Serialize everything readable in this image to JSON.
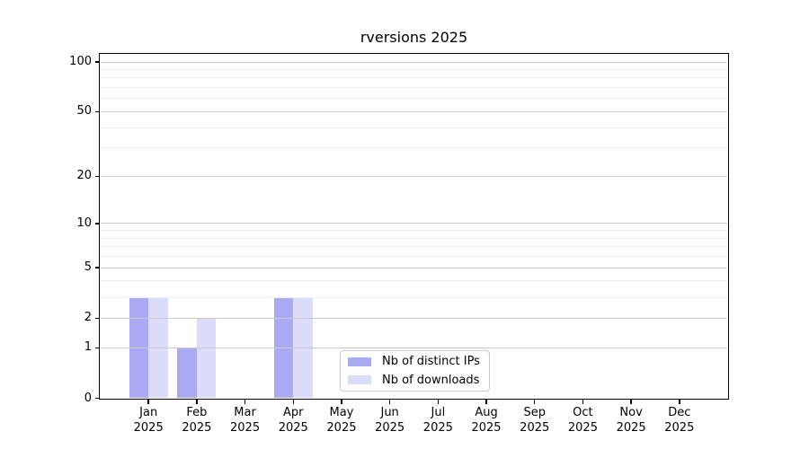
{
  "window": {
    "background": "#ffffff"
  },
  "chart_data": {
    "type": "bar",
    "title": "rversions 2025",
    "categories": [
      "Jan",
      "Feb",
      "Mar",
      "Apr",
      "May",
      "Jun",
      "Jul",
      "Aug",
      "Sep",
      "Oct",
      "Nov",
      "Dec"
    ],
    "year_label": "2025",
    "series": [
      {
        "name": "Nb of distinct IPs",
        "color": "#a9aaf3",
        "values": [
          3,
          1,
          0,
          3,
          0,
          0,
          0,
          0,
          0,
          0,
          0,
          0
        ]
      },
      {
        "name": "Nb of downloads",
        "color": "#dadcfa",
        "values": [
          3,
          2,
          0,
          3,
          0,
          0,
          0,
          0,
          0,
          0,
          0,
          0
        ]
      }
    ],
    "y_axis": {
      "scale": "log10(value+1)",
      "tick_values": [
        0,
        1,
        2,
        5,
        10,
        20,
        50,
        100
      ],
      "minor_gridline_values": [
        3,
        4,
        6,
        7,
        8,
        9,
        30,
        40,
        60,
        70,
        80,
        90
      ],
      "range": [
        0,
        111
      ]
    },
    "x_axis": {
      "tick_label_lines": 2
    },
    "legend": {
      "position": "lower-center",
      "entries": [
        "Nb of distinct IPs",
        "Nb of downloads"
      ]
    },
    "colors": {
      "grid_major": "#c9c9c9",
      "grid_minor": "#ededed",
      "axis": "#000000",
      "text": "#000000"
    },
    "grid": {
      "horizontal_major": true,
      "horizontal_minor": true,
      "vertical": false
    }
  }
}
